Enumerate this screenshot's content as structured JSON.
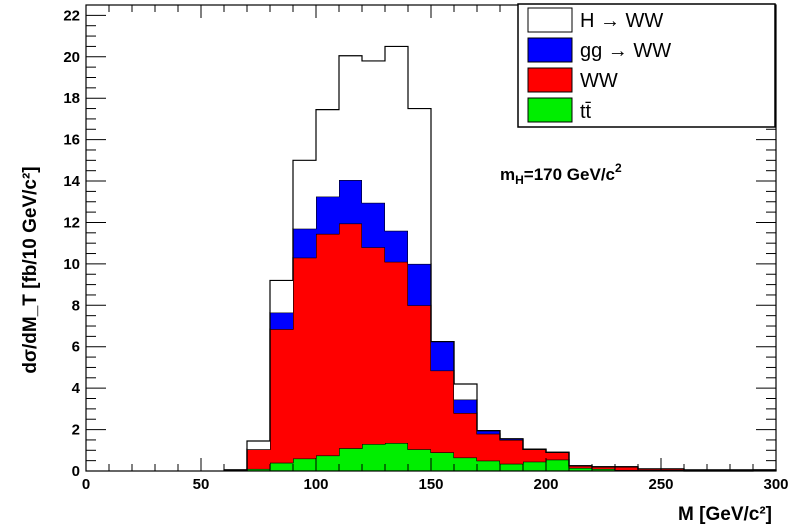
{
  "chart_data": {
    "type": "bar",
    "title": "",
    "xlabel": "M  [GeV/c²]",
    "ylabel": "dσ/dM_T [fb/10 GeV/c²]",
    "xlim": [
      0,
      300
    ],
    "ylim": [
      0,
      22.5
    ],
    "bin_width": 10,
    "x_ticks": [
      0,
      50,
      100,
      150,
      200,
      250,
      300
    ],
    "y_ticks": [
      0,
      2,
      4,
      6,
      8,
      10,
      12,
      14,
      16,
      18,
      20,
      22
    ],
    "stacked": true,
    "bin_edges": [
      60,
      70,
      80,
      90,
      100,
      110,
      120,
      130,
      140,
      150,
      160,
      170,
      180,
      190,
      200,
      210,
      220,
      230,
      240,
      250,
      260,
      270,
      280,
      290
    ],
    "series": [
      {
        "name": "tt̄",
        "color": "#00ee00",
        "values": [
          0.05,
          0.1,
          0.4,
          0.6,
          0.75,
          1.1,
          1.3,
          1.35,
          1.05,
          0.9,
          0.65,
          0.5,
          0.35,
          0.45,
          0.55,
          0.15,
          0.1,
          0.05,
          0.05,
          0.05,
          0.0,
          0.0,
          0.0,
          0.05
        ]
      },
      {
        "name": "WW",
        "color": "#ff0000",
        "values": [
          0.0,
          0.95,
          6.45,
          9.7,
          10.7,
          10.85,
          9.5,
          8.75,
          6.95,
          3.95,
          2.15,
          1.3,
          1.15,
          0.6,
          0.35,
          0.1,
          0.1,
          0.15,
          0.05,
          0.05,
          0.05,
          0.05,
          0.05,
          0.0
        ]
      },
      {
        "name": "gg → WW",
        "color": "#0000ff",
        "values": [
          0.0,
          0.0,
          0.8,
          1.4,
          1.8,
          2.1,
          2.15,
          1.5,
          2.0,
          1.4,
          0.65,
          0.15,
          0.05,
          0.0,
          0.0,
          0.0,
          0.0,
          0.0,
          0.0,
          0.0,
          0.0,
          0.0,
          0.0,
          0.0
        ]
      },
      {
        "name": "H → WW",
        "color": "#ffffff",
        "values": [
          0.0,
          0.4,
          1.55,
          3.3,
          4.2,
          6.0,
          6.85,
          8.9,
          7.5,
          0.0,
          0.75,
          0.0,
          0.0,
          0.0,
          0.0,
          0.0,
          0.0,
          0.0,
          0.0,
          0.0,
          0.0,
          0.0,
          0.0,
          0.0
        ]
      }
    ],
    "legend": {
      "placement": "top-right",
      "entries": [
        {
          "label": "H → WW",
          "color": "#ffffff"
        },
        {
          "label": "gg → WW",
          "color": "#0000ff"
        },
        {
          "label": "WW",
          "color": "#ff0000"
        },
        {
          "label": "tt̄",
          "color": "#00ee00"
        }
      ]
    },
    "annotation": {
      "text": "mH=170 GeV/c²",
      "main": "m",
      "sub": "H",
      "rest": "=170 GeV/c",
      "sup": "2"
    }
  }
}
